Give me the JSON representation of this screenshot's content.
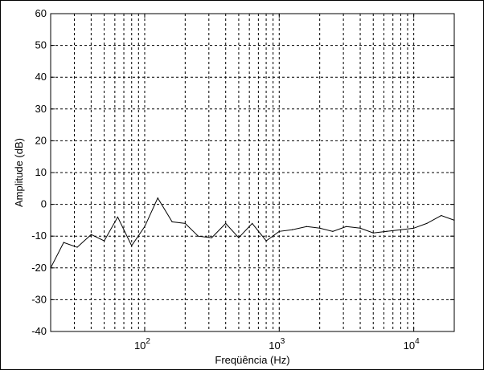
{
  "chart_data": {
    "type": "line",
    "xlabel": "Freqüência (Hz)",
    "ylabel": "Amplitude (dB)",
    "xscale": "log",
    "xlim": [
      20,
      20000
    ],
    "ylim": [
      -40,
      60
    ],
    "yticks": [
      "60",
      "50",
      "40",
      "30",
      "20",
      "10",
      "0",
      "-10",
      "-20",
      "-30",
      "-40"
    ],
    "xticks": [
      {
        "base": "10",
        "exp": "2"
      },
      {
        "base": "10",
        "exp": "3"
      },
      {
        "base": "10",
        "exp": "4"
      }
    ],
    "grid": true,
    "line_color": "#000000",
    "series": [
      {
        "x": [
          20,
          25,
          31.5,
          40,
          50,
          63,
          80,
          100,
          125,
          160,
          200,
          250,
          315,
          400,
          500,
          630,
          800,
          1000,
          1250,
          1600,
          2000,
          2500,
          3150,
          4000,
          5000,
          6300,
          8000,
          10000,
          12500,
          16000,
          20000
        ],
        "y": [
          -20,
          -12,
          -13.5,
          -9.5,
          -11.5,
          -4,
          -13,
          -7,
          2,
          -5.5,
          -6,
          -10,
          -10.5,
          -6,
          -10.5,
          -6,
          -11.5,
          -8.5,
          -8,
          -7,
          -7.5,
          -8.5,
          -7,
          -7.5,
          -9,
          -8.5,
          -8,
          -7.5,
          -6,
          -3.5,
          -5
        ]
      }
    ]
  }
}
